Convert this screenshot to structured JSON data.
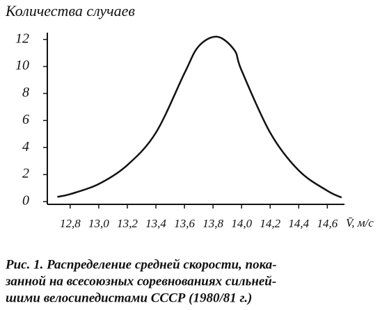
{
  "chart_data": {
    "type": "line",
    "ylabel": "Количества случаев",
    "xlabel": "V̄, м/с",
    "x": [
      12.71,
      12.8,
      13.0,
      13.2,
      13.4,
      13.6,
      13.7,
      13.83,
      13.95,
      14.0,
      14.2,
      14.4,
      14.6,
      14.7
    ],
    "series": [
      {
        "color": "#111111",
        "values": [
          0.35,
          0.55,
          1.3,
          2.7,
          5.1,
          9.5,
          11.5,
          12.2,
          11.2,
          9.7,
          5.1,
          2.3,
          0.8,
          0.3
        ]
      }
    ],
    "xlim": [
      12.64,
      14.72
    ],
    "ylim": [
      0,
      12.5
    ],
    "xticks": [
      {
        "value": 12.8,
        "label": "12,8"
      },
      {
        "value": 13.0,
        "label": "13,0"
      },
      {
        "value": 13.2,
        "label": "13,2"
      },
      {
        "value": 13.4,
        "label": "13,4"
      },
      {
        "value": 13.6,
        "label": "13,6"
      },
      {
        "value": 13.8,
        "label": "13,8"
      },
      {
        "value": 14.0,
        "label": "14,0"
      },
      {
        "value": 14.2,
        "label": "14,2"
      },
      {
        "value": 14.4,
        "label": "14,4"
      },
      {
        "value": 14.6,
        "label": "14,6"
      }
    ],
    "yticks": [
      0,
      2,
      4,
      6,
      8,
      10,
      12
    ],
    "caption": [
      "Рис. 1. Распределение средней скорости, пока-",
      "занной на всесоюзных соревнованиях сильней-",
      "шими велосипедистами СССР (1980/81 г.)"
    ]
  }
}
